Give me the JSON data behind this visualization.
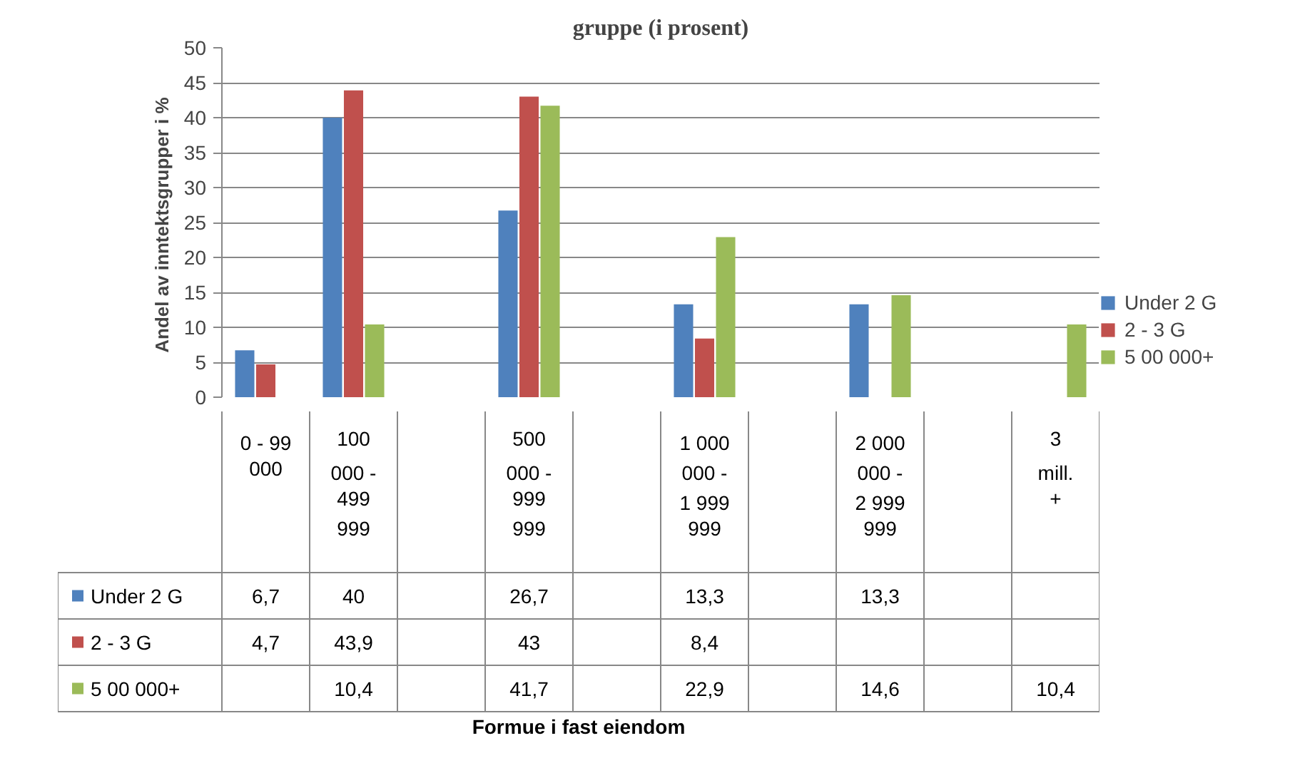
{
  "chart_data": {
    "type": "bar",
    "title": "gruppe (i prosent)",
    "annotations": [
      "Formue i fast eiendom"
    ],
    "ylabel": "Andel av inntektsgrupper i  %",
    "categories": [
      "0 - 99 000",
      "100 000 - 499 999",
      null,
      "500 000 - 999 999",
      null,
      "1 000 000 - 1 999 999",
      null,
      "2 000 000 - 2 999 999",
      null,
      "3 mill. +"
    ],
    "series": [
      {
        "name": "Under 2 G",
        "color": "#4f81bd",
        "values": [
          6.7,
          40,
          null,
          26.7,
          null,
          13.3,
          null,
          13.3,
          null,
          null
        ],
        "value_labels": [
          "6,7",
          "40",
          null,
          "26,7",
          null,
          "13,3",
          null,
          "13,3",
          null,
          null
        ]
      },
      {
        "name": "2 - 3 G",
        "color": "#c0504d",
        "values": [
          4.7,
          43.9,
          null,
          43,
          null,
          8.4,
          null,
          null,
          null,
          null
        ],
        "value_labels": [
          "4,7",
          "43,9",
          null,
          "43",
          null,
          "8,4",
          null,
          null,
          null,
          null
        ]
      },
      {
        "name": "5 00 000+",
        "color": "#9bbb59",
        "values": [
          null,
          10.4,
          null,
          41.7,
          null,
          22.9,
          null,
          14.6,
          null,
          10.4
        ],
        "value_labels": [
          null,
          "10,4",
          null,
          "41,7",
          null,
          "22,9",
          null,
          "14,6",
          null,
          "10,4"
        ]
      }
    ],
    "ylim": [
      0,
      50
    ],
    "yticks": [
      0,
      5,
      10,
      15,
      20,
      25,
      30,
      35,
      40,
      45,
      50
    ],
    "grid": "y",
    "legend": "right"
  }
}
